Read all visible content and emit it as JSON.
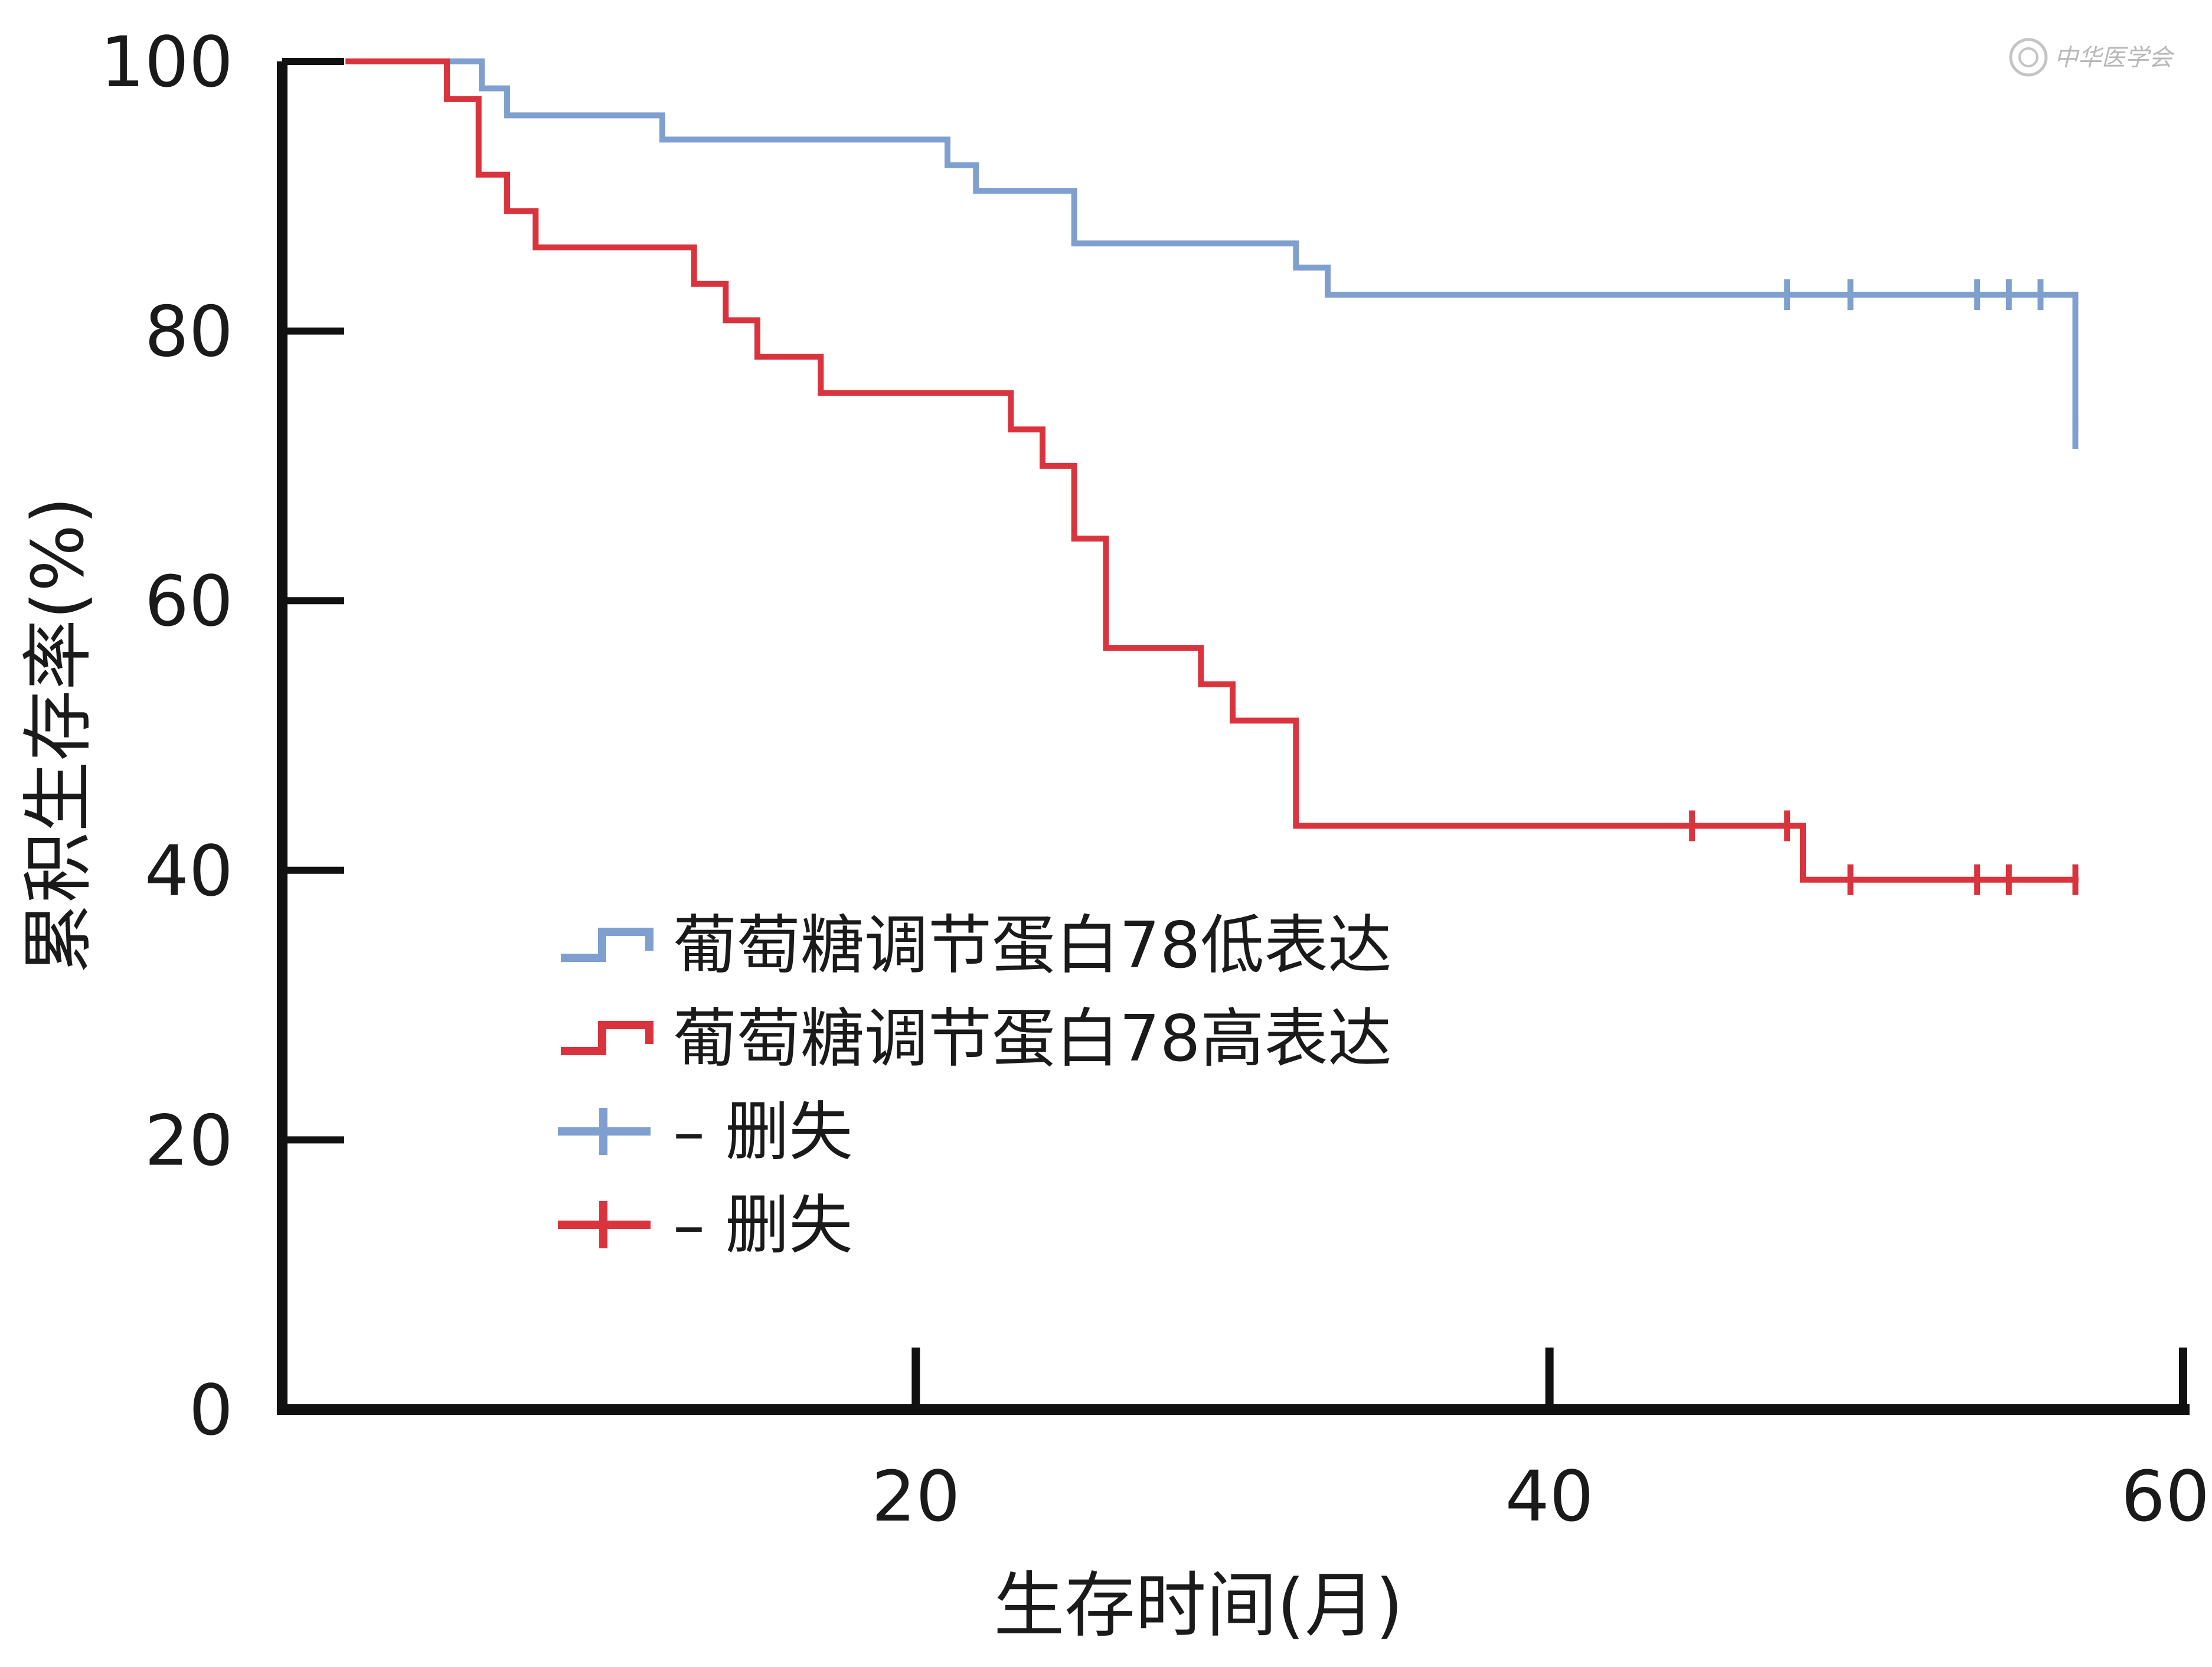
{
  "chart_data": {
    "type": "line",
    "subtype": "kaplan-meier-step",
    "title": "",
    "xlabel": "生存时间(月)",
    "ylabel": "累积生存率(%)",
    "xlim": [
      0,
      60
    ],
    "ylim": [
      0,
      100
    ],
    "x_ticks": [
      20,
      40,
      60
    ],
    "y_ticks": [
      0,
      20,
      40,
      60,
      80,
      100
    ],
    "grid": false,
    "legend_position": "center-left",
    "series": [
      {
        "name": "葡萄糖调节蛋白78低表达",
        "color": "#7fa0cf",
        "steps": [
          [
            2,
            100
          ],
          [
            6.3,
            98
          ],
          [
            7.1,
            96
          ],
          [
            12,
            94.2
          ],
          [
            21,
            92.3
          ],
          [
            21.9,
            90.4
          ],
          [
            25,
            86.5
          ],
          [
            32,
            84.7
          ],
          [
            33,
            82.7
          ],
          [
            56.6,
            72.4
          ]
        ],
        "end_x": 56.6,
        "censored": [
          [
            47.5,
            82.7
          ],
          [
            49.5,
            82.7
          ],
          [
            53.5,
            82.7
          ],
          [
            54.5,
            82.7
          ],
          [
            55.5,
            82.7
          ],
          [
            56.6,
            72.4
          ]
        ]
      },
      {
        "name": "葡萄糖调节蛋白78高表达",
        "color": "#d9343e",
        "steps": [
          [
            2,
            100
          ],
          [
            5.2,
            97.2
          ],
          [
            6.2,
            91.6
          ],
          [
            7.1,
            88.9
          ],
          [
            8,
            86.2
          ],
          [
            13,
            83.5
          ],
          [
            14,
            80.8
          ],
          [
            15,
            78.1
          ],
          [
            17,
            75.4
          ],
          [
            23,
            72.7
          ],
          [
            24,
            70
          ],
          [
            25,
            64.6
          ],
          [
            26,
            56.5
          ],
          [
            29,
            53.8
          ],
          [
            30,
            51.1
          ],
          [
            32,
            43.3
          ],
          [
            48,
            39.3
          ]
        ],
        "end_x": 56.7,
        "censored": [
          [
            44.5,
            43.3
          ],
          [
            47.5,
            43.3
          ],
          [
            49.5,
            39.3
          ],
          [
            53.5,
            39.3
          ],
          [
            54.5,
            39.3
          ],
          [
            56.6,
            39.3
          ]
        ]
      }
    ],
    "legend": [
      {
        "label": "葡萄糖调节蛋白78低表达",
        "marker": "step",
        "color": "#7fa0cf"
      },
      {
        "label": "葡萄糖调节蛋白78高表达",
        "marker": "step",
        "color": "#d9343e"
      },
      {
        "label": "– 删失",
        "marker": "censor",
        "color": "#7fa0cf"
      },
      {
        "label": "– 删失",
        "marker": "censor",
        "color": "#d9343e"
      }
    ]
  },
  "watermark": {
    "text": "中华医学会",
    "icon": "society-seal-icon"
  }
}
